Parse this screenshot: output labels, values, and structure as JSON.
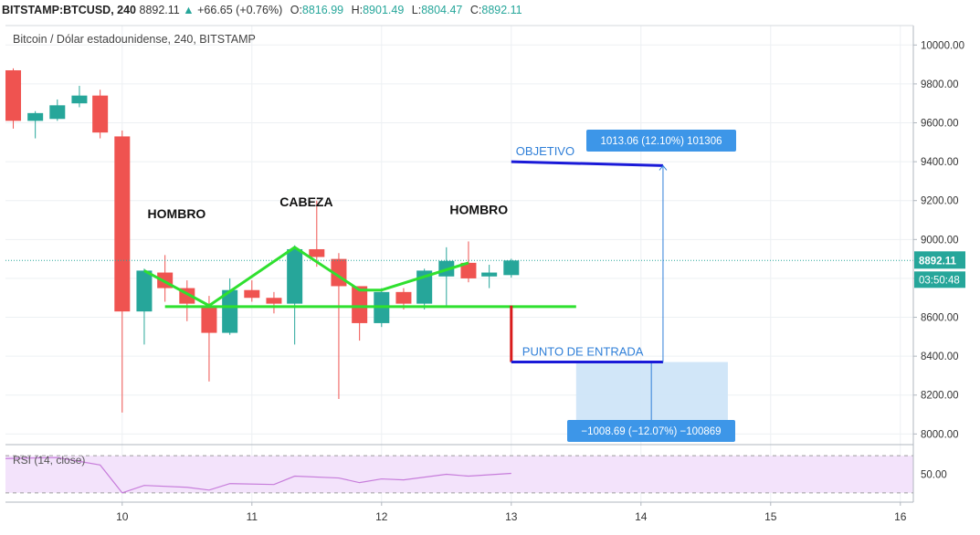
{
  "header": {
    "symbol": "BITSTAMP:BTCUSD, 240",
    "price": "8892.11",
    "arrow": "▲",
    "change": "+66.65 (+0.76%)",
    "open_label": "O:",
    "open": "8816.99",
    "high_label": "H:",
    "high": "8901.49",
    "low_label": "L:",
    "low": "8804.47",
    "close_label": "C:",
    "close": "8892.11"
  },
  "subtitle": "Bitcoin / Dólar estadounidense, 240, BITSTAMP",
  "rsi_label": "RSI (14, close)",
  "colors": {
    "up": "#26a69a",
    "down": "#ef5350",
    "pattern": "#2fe02f",
    "target_line": "#1a1ad8",
    "entry_marker": "#d81b1b",
    "label_box": "#3d96e8",
    "projection_fill": "#cfe5f8",
    "rsi_fill": "#f3e3fb",
    "rsi_line": "#c77ddb"
  },
  "chart_data": {
    "type": "candlestick",
    "x_ticks": [
      "10",
      "11",
      "12",
      "13",
      "14",
      "15",
      "16"
    ],
    "y_ticks": [
      "8000.00",
      "8200.00",
      "8400.00",
      "8600.00",
      "8800.00",
      "9000.00",
      "9200.00",
      "9400.00",
      "9600.00",
      "9800.00",
      "10000.00"
    ],
    "ylim": [
      7950,
      10100
    ],
    "xlim": [
      9.1,
      16.1
    ],
    "candles": [
      {
        "t": 9.16,
        "o": 9870,
        "h": 9880,
        "l": 9570,
        "c": 9610
      },
      {
        "t": 9.33,
        "o": 9610,
        "h": 9660,
        "l": 9520,
        "c": 9650
      },
      {
        "t": 9.5,
        "o": 9620,
        "h": 9720,
        "l": 9610,
        "c": 9690
      },
      {
        "t": 9.67,
        "o": 9700,
        "h": 9790,
        "l": 9680,
        "c": 9740
      },
      {
        "t": 9.83,
        "o": 9740,
        "h": 9770,
        "l": 9520,
        "c": 9550
      },
      {
        "t": 10.0,
        "o": 9530,
        "h": 9560,
        "l": 8110,
        "c": 8630
      },
      {
        "t": 10.17,
        "o": 8630,
        "h": 8850,
        "l": 8460,
        "c": 8840
      },
      {
        "t": 10.33,
        "o": 8830,
        "h": 8920,
        "l": 8680,
        "c": 8750
      },
      {
        "t": 10.5,
        "o": 8750,
        "h": 8790,
        "l": 8580,
        "c": 8670
      },
      {
        "t": 10.67,
        "o": 8660,
        "h": 8710,
        "l": 8270,
        "c": 8520
      },
      {
        "t": 10.83,
        "o": 8520,
        "h": 8800,
        "l": 8510,
        "c": 8740
      },
      {
        "t": 11.0,
        "o": 8740,
        "h": 8790,
        "l": 8680,
        "c": 8700
      },
      {
        "t": 11.17,
        "o": 8700,
        "h": 8730,
        "l": 8620,
        "c": 8670
      },
      {
        "t": 11.33,
        "o": 8670,
        "h": 8970,
        "l": 8460,
        "c": 8950
      },
      {
        "t": 11.5,
        "o": 8950,
        "h": 9200,
        "l": 8860,
        "c": 8910
      },
      {
        "t": 11.67,
        "o": 8900,
        "h": 8930,
        "l": 8180,
        "c": 8760
      },
      {
        "t": 11.83,
        "o": 8760,
        "h": 8760,
        "l": 8480,
        "c": 8570
      },
      {
        "t": 12.0,
        "o": 8570,
        "h": 8750,
        "l": 8550,
        "c": 8730
      },
      {
        "t": 12.17,
        "o": 8730,
        "h": 8750,
        "l": 8640,
        "c": 8670
      },
      {
        "t": 12.33,
        "o": 8670,
        "h": 8850,
        "l": 8640,
        "c": 8840
      },
      {
        "t": 12.5,
        "o": 8810,
        "h": 8960,
        "l": 8660,
        "c": 8890
      },
      {
        "t": 12.67,
        "o": 8880,
        "h": 8990,
        "l": 8780,
        "c": 8800
      },
      {
        "t": 12.83,
        "o": 8810,
        "h": 8870,
        "l": 8750,
        "c": 8830
      },
      {
        "t": 13.0,
        "o": 8817,
        "h": 8901,
        "l": 8804,
        "c": 8892
      }
    ],
    "current_price": {
      "value": 8892.11,
      "label": "8892.11",
      "countdown": "03:50:48"
    },
    "pattern_line": [
      [
        10.17,
        8840
      ],
      [
        10.67,
        8660
      ],
      [
        11.33,
        8960
      ],
      [
        11.83,
        8740
      ],
      [
        12.0,
        8740
      ],
      [
        12.67,
        8880
      ]
    ],
    "neckline": {
      "x": [
        10.33,
        13.5
      ],
      "y": 8655
    },
    "annotations": [
      {
        "text": "HOMBRO",
        "x": 10.42,
        "y": 9110
      },
      {
        "text": "CABEZA",
        "x": 11.42,
        "y": 9170
      },
      {
        "text": "HOMBRO",
        "x": 12.75,
        "y": 9130
      }
    ],
    "objetivo": {
      "label": "OBJETIVO",
      "x": [
        13.0,
        14.17
      ],
      "y": [
        9400,
        9380
      ]
    },
    "entrada": {
      "label": "PUNTO DE ENTRADA",
      "x": [
        13.0,
        14.17
      ],
      "y": 8370,
      "marker_top": 8660
    },
    "measure_up": {
      "text": "1013.06 (12.10%) 101306",
      "x": 14.17,
      "y_from": 8370,
      "y_to": 9380
    },
    "measure_down": {
      "text": "−1008.69 (−12.07%) −100869",
      "x_from": 13.5,
      "x_to": 14.67,
      "y_from": 8370,
      "y_to": 7960
    },
    "rsi": {
      "ylabel": "50.00",
      "ylim": [
        20,
        80
      ],
      "band": [
        30,
        70
      ],
      "points": [
        [
          9.1,
          67
        ],
        [
          9.5,
          68
        ],
        [
          9.83,
          60
        ],
        [
          10.0,
          30
        ],
        [
          10.17,
          38
        ],
        [
          10.5,
          36
        ],
        [
          10.67,
          33
        ],
        [
          10.83,
          40
        ],
        [
          11.17,
          39
        ],
        [
          11.33,
          48
        ],
        [
          11.67,
          46
        ],
        [
          11.83,
          41
        ],
        [
          12.0,
          45
        ],
        [
          12.17,
          44
        ],
        [
          12.5,
          50
        ],
        [
          12.67,
          48
        ],
        [
          13.0,
          51
        ]
      ]
    }
  }
}
